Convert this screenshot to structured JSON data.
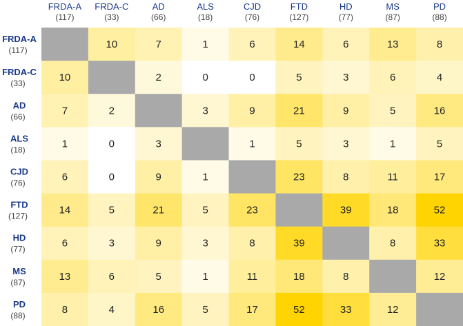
{
  "chart_data": {
    "type": "heatmap",
    "rows": [
      {
        "name": "FRDA-A",
        "count": "(117)"
      },
      {
        "name": "FRDA-C",
        "count": "(33)"
      },
      {
        "name": "AD",
        "count": "(66)"
      },
      {
        "name": "ALS",
        "count": "(18)"
      },
      {
        "name": "CJD",
        "count": "(76)"
      },
      {
        "name": "FTD",
        "count": "(127)"
      },
      {
        "name": "HD",
        "count": "(77)"
      },
      {
        "name": "MS",
        "count": "(87)"
      },
      {
        "name": "PD",
        "count": "(88)"
      }
    ],
    "columns": [
      {
        "name": "FRDA-A",
        "count": "(117)"
      },
      {
        "name": "FRDA-C",
        "count": "(33)"
      },
      {
        "name": "AD",
        "count": "(66)"
      },
      {
        "name": "ALS",
        "count": "(18)"
      },
      {
        "name": "CJD",
        "count": "(76)"
      },
      {
        "name": "FTD",
        "count": "(127)"
      },
      {
        "name": "HD",
        "count": "(77)"
      },
      {
        "name": "MS",
        "count": "(87)"
      },
      {
        "name": "PD",
        "count": "(88)"
      }
    ],
    "values": [
      [
        null,
        10,
        7,
        1,
        6,
        14,
        6,
        13,
        8
      ],
      [
        10,
        null,
        2,
        0,
        0,
        5,
        3,
        6,
        4
      ],
      [
        7,
        2,
        null,
        3,
        9,
        21,
        9,
        5,
        16
      ],
      [
        1,
        0,
        3,
        null,
        1,
        5,
        3,
        1,
        5
      ],
      [
        6,
        0,
        9,
        1,
        null,
        23,
        8,
        11,
        17
      ],
      [
        14,
        5,
        21,
        5,
        23,
        null,
        39,
        18,
        52
      ],
      [
        6,
        3,
        9,
        3,
        8,
        39,
        null,
        8,
        33
      ],
      [
        13,
        6,
        5,
        1,
        11,
        18,
        8,
        null,
        12
      ],
      [
        8,
        4,
        16,
        5,
        17,
        52,
        33,
        12,
        null
      ]
    ],
    "color_scale": {
      "low": "#ffffff",
      "high": "#ffd400"
    },
    "diagonal_color": "#a9a9a9",
    "label_color": "#1a3a8a"
  }
}
